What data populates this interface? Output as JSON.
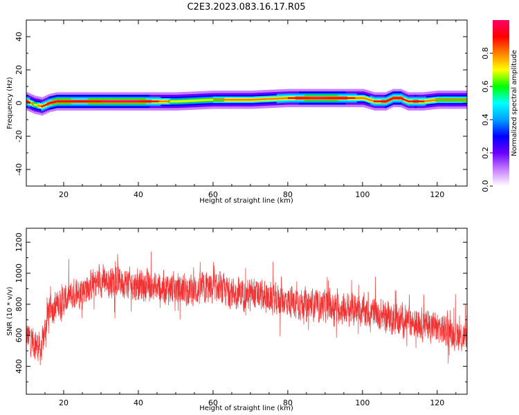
{
  "title": "C2E3.2023.083.16.17.R05",
  "chart_data": [
    {
      "type": "heatmap",
      "xlabel": "Height of straight line (km)",
      "ylabel": "Frequency (Hz)",
      "xlim": [
        10,
        128
      ],
      "ylim": [
        -50,
        50
      ],
      "xticks": [
        20,
        40,
        60,
        80,
        100,
        120
      ],
      "yticks": [
        -40,
        -20,
        0,
        20,
        40
      ],
      "colorbar": {
        "label": "Normalized spectral amplitude",
        "ticks": [
          0.0,
          0.2,
          0.4,
          0.6,
          0.8
        ],
        "range": [
          0,
          1
        ],
        "colors": [
          "#ffffff",
          "#c77dff",
          "#6a00ff",
          "#0000ff",
          "#00a0ff",
          "#00ffff",
          "#00ff00",
          "#ffff00",
          "#ff8000",
          "#ff0000",
          "#ff0066"
        ]
      },
      "ridge": {
        "x": [
          10,
          12,
          14,
          16,
          18,
          24,
          30,
          40,
          45,
          50,
          60,
          70,
          80,
          86,
          90,
          95,
          100,
          103,
          106,
          108,
          110,
          112,
          114,
          116,
          120,
          128
        ],
        "center_freq": [
          1,
          -1,
          -2,
          0,
          1,
          1,
          1,
          1,
          1,
          1,
          2,
          2,
          3,
          3,
          3,
          3,
          3,
          1,
          1,
          3,
          3,
          1,
          1,
          1,
          2,
          2
        ],
        "peak_amplitude": [
          0.9,
          0.7,
          0.85,
          0.9,
          0.95,
          0.9,
          0.95,
          0.95,
          0.85,
          0.7,
          0.75,
          0.8,
          0.85,
          0.95,
          0.95,
          0.9,
          0.8,
          0.85,
          0.9,
          0.9,
          0.9,
          0.85,
          0.9,
          0.85,
          0.75,
          0.75
        ]
      }
    },
    {
      "type": "line",
      "xlabel": "Height of straight line (km)",
      "ylabel": "SNR (10 * v/v)",
      "xlim": [
        10,
        128
      ],
      "ylim": [
        220,
        1290
      ],
      "xticks": [
        20,
        40,
        60,
        80,
        100,
        120
      ],
      "yticks": [
        400,
        600,
        800,
        1000,
        1200
      ],
      "series": [
        {
          "color": "#f03232",
          "trend_x": [
            10,
            12,
            14,
            16,
            20,
            25,
            30,
            35,
            40,
            45,
            50,
            55,
            60,
            65,
            70,
            75,
            80,
            85,
            90,
            95,
            100,
            105,
            110,
            115,
            120,
            125,
            128
          ],
          "trend_y": [
            600,
            560,
            500,
            760,
            820,
            900,
            950,
            950,
            920,
            910,
            900,
            890,
            900,
            880,
            860,
            840,
            820,
            800,
            790,
            770,
            760,
            730,
            700,
            680,
            650,
            610,
            580
          ],
          "noise_amplitude": 90,
          "samples": 3000
        }
      ]
    }
  ]
}
